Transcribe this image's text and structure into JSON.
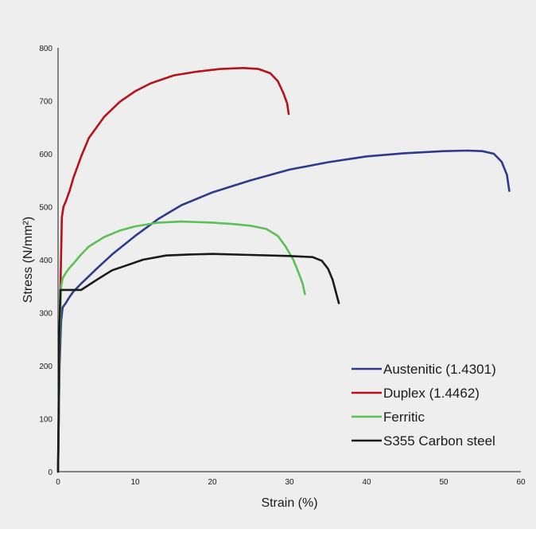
{
  "chart_data": {
    "type": "line",
    "title": "",
    "xlabel": "Strain (%)",
    "ylabel": "Stress (N/mm²)",
    "xlim": [
      0,
      60
    ],
    "ylim": [
      0,
      800
    ],
    "xticks": [
      "0",
      "10",
      "20",
      "30",
      "40",
      "50",
      "60"
    ],
    "yticks": [
      "0",
      "100",
      "200",
      "300",
      "400",
      "500",
      "600",
      "700",
      "800"
    ],
    "grid": false,
    "legend_position": "bottom-right",
    "series": [
      {
        "name": "Austenitic (1.4301)",
        "color": "#2e3a8c",
        "x": [
          0,
          0.2,
          0.4,
          0.6,
          1,
          1.5,
          2,
          3,
          5,
          7,
          10,
          13,
          16,
          20,
          25,
          30,
          35,
          40,
          45,
          50,
          53,
          55,
          56.5,
          57.5,
          58.2,
          58.5
        ],
        "y": [
          0,
          200,
          285,
          310,
          318,
          330,
          340,
          355,
          383,
          410,
          445,
          477,
          503,
          527,
          550,
          570,
          584,
          595,
          601,
          605,
          606,
          605,
          600,
          585,
          560,
          530
        ]
      },
      {
        "name": "Duplex (1.4462)",
        "color": "#b5121b",
        "x": [
          0,
          0.25,
          0.5,
          0.7,
          1,
          1.5,
          2,
          3,
          4,
          6,
          8,
          10,
          12,
          15,
          18,
          21,
          24,
          26,
          27.5,
          28.5,
          29.2,
          29.7,
          29.9
        ],
        "y": [
          0,
          300,
          480,
          500,
          510,
          530,
          555,
          595,
          630,
          670,
          698,
          718,
          733,
          748,
          755,
          760,
          762,
          760,
          752,
          737,
          715,
          695,
          675
        ]
      },
      {
        "name": "Ferritic",
        "color": "#5cbf57",
        "x": [
          0,
          0.2,
          0.4,
          0.6,
          1,
          1.5,
          2,
          3,
          4,
          6,
          8,
          10,
          13,
          16,
          20,
          23,
          25,
          27,
          28.5,
          29.5,
          30.5,
          31.2,
          31.7,
          32
        ],
        "y": [
          0,
          240,
          350,
          365,
          375,
          385,
          393,
          410,
          425,
          443,
          455,
          463,
          470,
          472,
          470,
          467,
          464,
          458,
          445,
          425,
          400,
          375,
          355,
          335
        ]
      },
      {
        "name": "S355 Carbon steel",
        "color": "#1a1a1a",
        "x": [
          0,
          0.15,
          0.3,
          1,
          2,
          3,
          5,
          7,
          9,
          11,
          14,
          17,
          20,
          25,
          30,
          33,
          34.2,
          35,
          35.6,
          36,
          36.4
        ],
        "y": [
          0,
          250,
          343,
          343,
          343,
          343,
          362,
          380,
          390,
          400,
          408,
          410,
          411,
          409,
          407,
          405,
          398,
          383,
          362,
          340,
          318
        ]
      }
    ]
  }
}
